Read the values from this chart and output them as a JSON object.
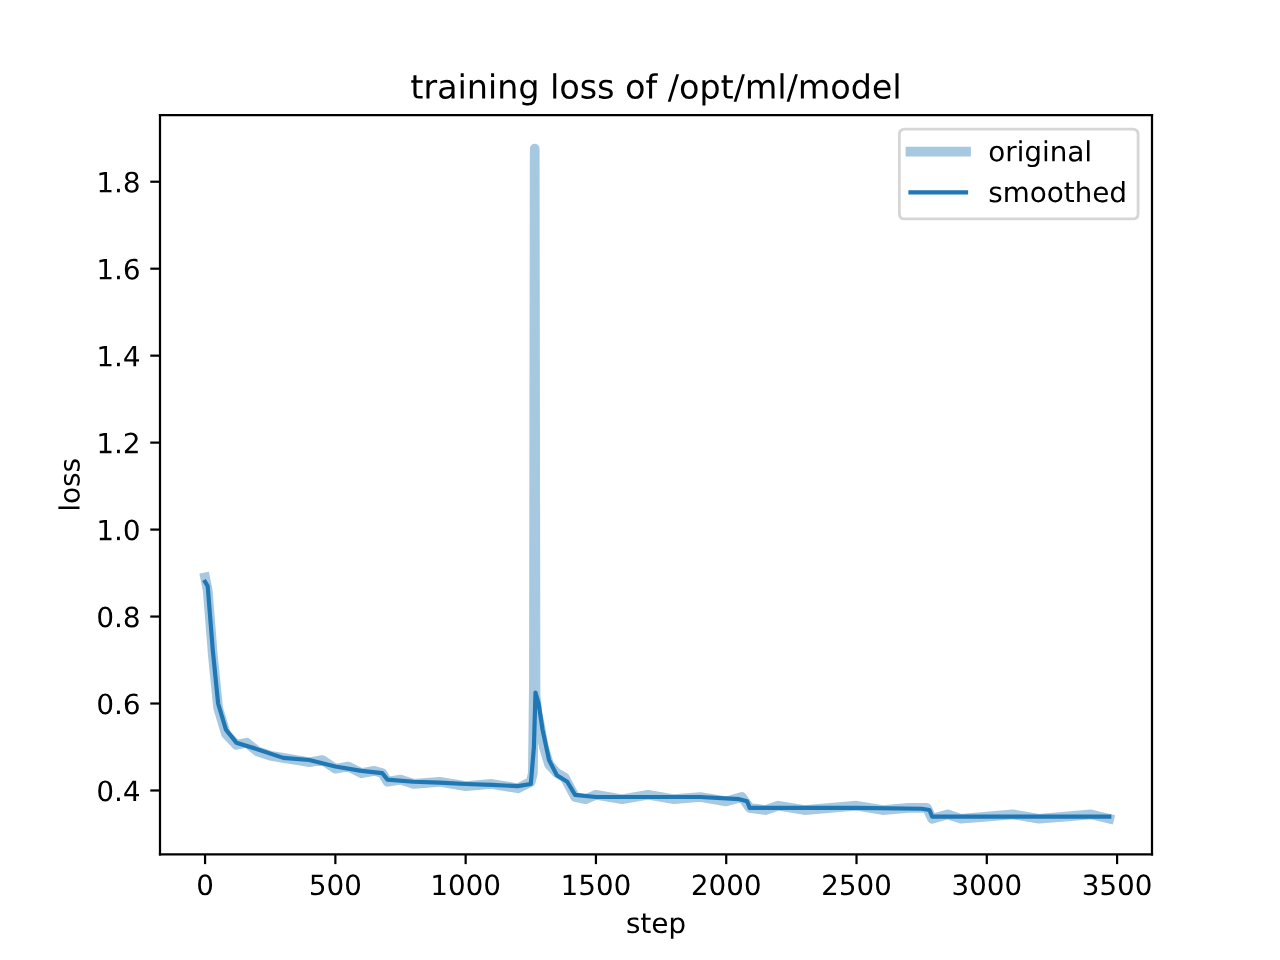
{
  "chart_data": {
    "type": "line",
    "title": "training loss of /opt/ml/model",
    "xlabel": "step",
    "ylabel": "loss",
    "xlim": [
      -173,
      3634
    ],
    "ylim": [
      0.253,
      1.953
    ],
    "xticks": [
      0,
      500,
      1000,
      1500,
      2000,
      2500,
      3000,
      3500
    ],
    "yticks": [
      0.4,
      0.6,
      0.8,
      {
        "value": 1,
        "label": "1.0"
      },
      1.2,
      1.4,
      1.6,
      1.8
    ],
    "legend": "top right",
    "grid": false,
    "series": [
      {
        "name": "original",
        "color": "#a6c8e1",
        "x": [
          0,
          10,
          30,
          50,
          80,
          120,
          160,
          200,
          250,
          300,
          350,
          400,
          450,
          500,
          550,
          600,
          650,
          680,
          700,
          750,
          800,
          900,
          1000,
          1100,
          1200,
          1250,
          1258,
          1262,
          1265,
          1268,
          1275,
          1285,
          1300,
          1320,
          1350,
          1380,
          1420,
          1460,
          1500,
          1600,
          1700,
          1800,
          1900,
          2000,
          2060,
          2090,
          2150,
          2200,
          2300,
          2400,
          2500,
          2600,
          2700,
          2770,
          2790,
          2850,
          2900,
          3000,
          3100,
          3200,
          3300,
          3400,
          3470
        ],
        "values": [
          0.89,
          0.86,
          0.71,
          0.59,
          0.53,
          0.505,
          0.51,
          0.49,
          0.48,
          0.475,
          0.47,
          0.465,
          0.47,
          0.45,
          0.455,
          0.44,
          0.445,
          0.44,
          0.42,
          0.425,
          0.415,
          0.42,
          0.41,
          0.415,
          0.405,
          0.42,
          0.44,
          0.65,
          1.876,
          0.62,
          0.58,
          0.55,
          0.5,
          0.46,
          0.44,
          0.43,
          0.385,
          0.38,
          0.39,
          0.38,
          0.39,
          0.38,
          0.385,
          0.375,
          0.385,
          0.36,
          0.355,
          0.365,
          0.355,
          0.36,
          0.365,
          0.355,
          0.36,
          0.36,
          0.335,
          0.345,
          0.335,
          0.34,
          0.345,
          0.335,
          0.34,
          0.345,
          0.335
        ]
      },
      {
        "name": "smoothed",
        "color": "#1f77b4",
        "x": [
          0,
          10,
          30,
          50,
          80,
          120,
          200,
          300,
          400,
          500,
          600,
          680,
          700,
          800,
          900,
          1000,
          1100,
          1200,
          1250,
          1262,
          1268,
          1280,
          1295,
          1320,
          1350,
          1390,
          1420,
          1500,
          1700,
          1900,
          2050,
          2080,
          2090,
          2300,
          2500,
          2750,
          2780,
          2790,
          3000,
          3200,
          3470
        ],
        "values": [
          0.88,
          0.87,
          0.72,
          0.6,
          0.54,
          0.51,
          0.495,
          0.475,
          0.47,
          0.455,
          0.445,
          0.44,
          0.425,
          0.42,
          0.418,
          0.415,
          0.413,
          0.41,
          0.415,
          0.5,
          0.625,
          0.6,
          0.54,
          0.47,
          0.435,
          0.42,
          0.39,
          0.385,
          0.385,
          0.385,
          0.38,
          0.375,
          0.36,
          0.36,
          0.36,
          0.358,
          0.355,
          0.34,
          0.34,
          0.34,
          0.34
        ]
      }
    ]
  }
}
